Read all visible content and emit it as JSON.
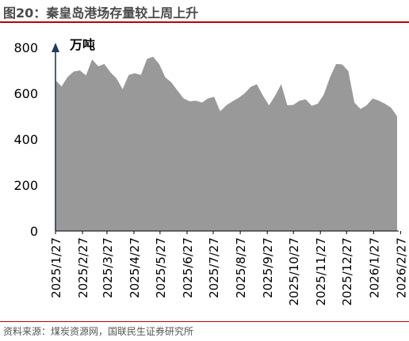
{
  "figure_title": "图20：秦皇岛港场存量较上周上升",
  "source": "资料来源：煤炭资源网，国联民生证券研究所",
  "colors": {
    "area": "#999999",
    "axis": "#1f3864",
    "rule": "#c00000",
    "text": "#000000"
  },
  "chart_data": {
    "type": "area",
    "title": "",
    "xlabel": "",
    "ylabel": "",
    "unit_label": "万吨",
    "ylim": [
      0,
      800
    ],
    "yticks": [
      0,
      200,
      400,
      600,
      800
    ],
    "grid": false,
    "legend": "none",
    "xticks": [
      "2025/1/27",
      "2025/2/27",
      "2025/3/27",
      "2025/4/27",
      "2025/5/27",
      "2025/6/27",
      "2025/7/27",
      "2025/8/27",
      "2025/9/27",
      "2025/10/27",
      "2025/11/27",
      "2025/12/27",
      "2026/1/27",
      "2026/2/27"
    ],
    "x": [
      "2025/1/27",
      "2025/2/3",
      "2025/2/10",
      "2025/2/17",
      "2025/2/24",
      "2025/3/3",
      "2025/3/10",
      "2025/3/17",
      "2025/3/24",
      "2025/3/31",
      "2025/4/7",
      "2025/4/14",
      "2025/4/21",
      "2025/4/28",
      "2025/5/5",
      "2025/5/12",
      "2025/5/19",
      "2025/5/26",
      "2025/6/2",
      "2025/6/9",
      "2025/6/16",
      "2025/6/23",
      "2025/6/30",
      "2025/7/7",
      "2025/7/14",
      "2025/7/21",
      "2025/7/28",
      "2025/8/4",
      "2025/8/11",
      "2025/8/18",
      "2025/8/25",
      "2025/9/1",
      "2025/9/8",
      "2025/9/15",
      "2025/9/22",
      "2025/9/29",
      "2025/10/6",
      "2025/10/13",
      "2025/10/20",
      "2025/10/27",
      "2025/11/3",
      "2025/11/10",
      "2025/11/17",
      "2025/11/24",
      "2025/12/1",
      "2025/12/8",
      "2025/12/15",
      "2025/12/22",
      "2025/12/29",
      "2026/1/5",
      "2026/1/12",
      "2026/1/19",
      "2026/1/26",
      "2026/2/2",
      "2026/2/9",
      "2026/2/16",
      "2026/2/23"
    ],
    "series": [
      {
        "values": [
          658,
          630,
          672,
          695,
          700,
          678,
          748,
          718,
          728,
          692,
          665,
          618,
          680,
          688,
          680,
          750,
          760,
          728,
          670,
          648,
          612,
          578,
          565,
          568,
          560,
          578,
          585,
          522,
          548,
          565,
          580,
          600,
          628,
          640,
          590,
          548,
          590,
          640,
          548,
          550,
          568,
          574,
          546,
          555,
          595,
          670,
          728,
          726,
          698,
          560,
          532,
          548,
          578,
          568,
          555,
          538,
          500
        ]
      }
    ]
  }
}
